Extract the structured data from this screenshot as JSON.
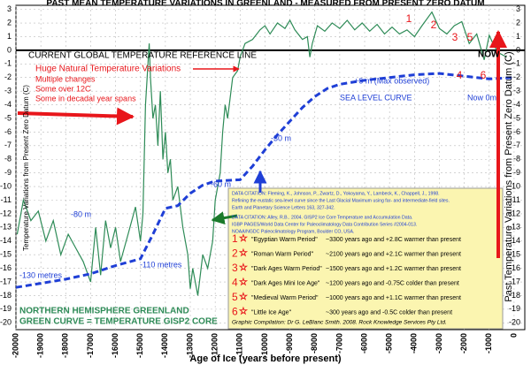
{
  "chart_data": {
    "type": "line",
    "title": "PAST MEAN TEMPERATURE VARIATIONS IN GREENLAND  -  MEASURED FROM PRESENT  ZERO DATUM",
    "x_label": "Age of Ice (years before present)",
    "y_label": "Temperature  Variations  from  Present  Zero  Datum (C)",
    "y2_label": "Past Temperature Variations from Present Zero Datum (C)",
    "xlim": [
      -20000,
      430
    ],
    "xticks": [
      -20000,
      -19000,
      -18000,
      -17000,
      -16000,
      -15000,
      -14000,
      -13000,
      -12000,
      -11000,
      -10000,
      -9000,
      -8000,
      -7000,
      -6000,
      -5000,
      -4000,
      -3000,
      -2000,
      -1000,
      0
    ],
    "ylim": [
      -20.5,
      3.3
    ],
    "yticks": [
      3,
      2,
      1,
      0,
      -1,
      -2,
      -3,
      -4,
      -5,
      -6,
      -7,
      -8,
      -9,
      -10,
      -11,
      -12,
      -13,
      -14,
      -15,
      -16,
      -17,
      -18,
      -19,
      -20
    ],
    "grid": true,
    "series": [
      {
        "name": "GREEN CURVE = TEMPERATURE GISP2 CORE",
        "color": "#2e8b57",
        "x": [
          -19950,
          -19700,
          -19400,
          -19100,
          -18800,
          -18500,
          -18200,
          -17900,
          -17600,
          -17300,
          -17000,
          -16800,
          -16600,
          -16400,
          -16200,
          -16000,
          -15800,
          -15500,
          -15200,
          -15000,
          -14900,
          -14800,
          -14700,
          -14650,
          -14600,
          -14500,
          -14400,
          -14300,
          -14200,
          -14100,
          -14000,
          -13900,
          -13800,
          -13700,
          -13500,
          -13300,
          -13100,
          -13000,
          -12900,
          -12700,
          -12500,
          -12300,
          -12100,
          -12000,
          -11800,
          -11700,
          -11600,
          -11500,
          -11300,
          -11100,
          -11000,
          -10800,
          -10500,
          -10200,
          -10000,
          -9800,
          -9500,
          -9200,
          -9000,
          -8800,
          -8500,
          -8300,
          -8200,
          -8100,
          -7900,
          -7600,
          -7300,
          -7000,
          -6700,
          -6400,
          -6100,
          -5800,
          -5500,
          -5200,
          -4900,
          -4600,
          -4300,
          -4000,
          -3700,
          -3300,
          -3000,
          -2700,
          -2400,
          -2100,
          -1800,
          -1500,
          -1200,
          -1000,
          -800,
          -600,
          -300
        ],
        "values": [
          -13.5,
          -11,
          -12.5,
          -11.8,
          -14,
          -12.5,
          -15,
          -13.5,
          -14.5,
          -15.5,
          -17,
          -13,
          -16.5,
          -12.5,
          -14.5,
          -13,
          -15.5,
          -13.5,
          -11.5,
          -14,
          -12,
          -4,
          -1,
          0.5,
          -2,
          -5,
          -4,
          -7,
          -3,
          -8,
          -6,
          -9,
          -8,
          -11,
          -10,
          -13,
          -15,
          -17.5,
          -16,
          -18,
          -15,
          -16,
          -14,
          -11,
          -9,
          -6,
          -4,
          -5,
          -2,
          -1.5,
          -0.5,
          0.5,
          0.8,
          1.5,
          1.8,
          1.2,
          2,
          1.6,
          2.2,
          1.5,
          0.8,
          1,
          -0.5,
          0.5,
          1.8,
          1.4,
          2,
          1.6,
          2.2,
          1.5,
          2,
          1.4,
          1.9,
          1.2,
          1.7,
          1.2,
          1.5,
          1,
          1.8,
          2.8,
          1.6,
          1.2,
          1.8,
          2.1,
          0.5,
          1.2,
          -0.7,
          1.1,
          0.3,
          -0.2,
          -0.5
        ]
      },
      {
        "name": "SEA  LEVEL  CURVE",
        "color": "#1f3fd6",
        "dashed": true,
        "x": [
          -20000,
          -19000,
          -18000,
          -17000,
          -16000,
          -15000,
          -14500,
          -14000,
          -13500,
          -13000,
          -12500,
          -12000,
          -11000,
          -10500,
          -10000,
          -9500,
          -9000,
          -8500,
          -8000,
          -7500,
          -7000,
          -6000,
          -5000,
          -4000,
          -3000,
          -2000,
          -1000,
          0
        ],
        "values": [
          -17.4,
          -17.1,
          -16.8,
          -16.4,
          -15.8,
          -15.3,
          -13.5,
          -11.6,
          -11.4,
          -10.5,
          -9.9,
          -9.6,
          -9.5,
          -8.5,
          -7.3,
          -6.2,
          -5.2,
          -4.2,
          -3.4,
          -2.8,
          -2.5,
          -2.2,
          -2,
          -1.8,
          -1.7,
          -1.9,
          -2.1,
          -2
        ]
      }
    ],
    "annotations": [
      "CURRENT   GLOBAL   TEMPERATURE   REFERENCE   LINE",
      "NOW",
      "Huge Natural Temperature   Variations",
      "Multiple changes",
      "Some over 12C",
      "Some in decadal year spans",
      "-130 metres",
      "-110 metres",
      "-80 m",
      "-60 m",
      "-30 m",
      "+6 m (Max observed)",
      "Now 0m",
      "NORTHERN  HEMISPHERE  GREENLAND"
    ],
    "citations": [
      "DATA CITATION: Fleming, K., Johnson, P., Zwartz, D., Yokoyama, Y., Lambeck, K., Chappell, J., 1998.",
      "Refining the eustatic sea-level curve since the Last Glacial Maximum using far- and intermediate-field sites.",
      "Earth and Planetary Science Letters 163, 327-342.",
      "DATA CITATION: Alley, R.B..  2004.  GISP2 Ice Core Temperature and Accumulation Data.",
      "IGBP PAGES/World Data Center for Paleoclimatology Data Contribution Series #2004-013.",
      "NOAA/NGDC Paleoclimatology Program, Boulder CO, USA."
    ],
    "periods": [
      {
        "number": "1",
        "name": "\"Egyptian Warm Period\"",
        "detail": "~3300 years ago and +2.8C  warmer  than  present"
      },
      {
        "number": "2",
        "name": "\"Roman Warm Period\"",
        "detail": "~2100 years ago and +2.1C  warmer  than  present"
      },
      {
        "number": "3",
        "name": "\"Dark Ages Warm Period\"",
        "detail": "~1500 years ago and +1.2C  warmer  than  present"
      },
      {
        "number": "4",
        "name": "\"Dark Ages Mini Ice Age\"",
        "detail": "~1200 years ago and -0.75C  colder  than  present"
      },
      {
        "number": "5",
        "name": "\"Medieval Warm Period\"",
        "detail": "~1000 years ago and +1.1C  warmer  than  present"
      },
      {
        "number": "6",
        "name": "\"Little Ice Age\"",
        "detail": "~300  years ago and -0.5C  colder  than  present"
      }
    ],
    "credit": "Graphic Compilation: Dr G. LeBlanc Smith. 2008. Rock Knowledge Services Pty Ltd."
  }
}
